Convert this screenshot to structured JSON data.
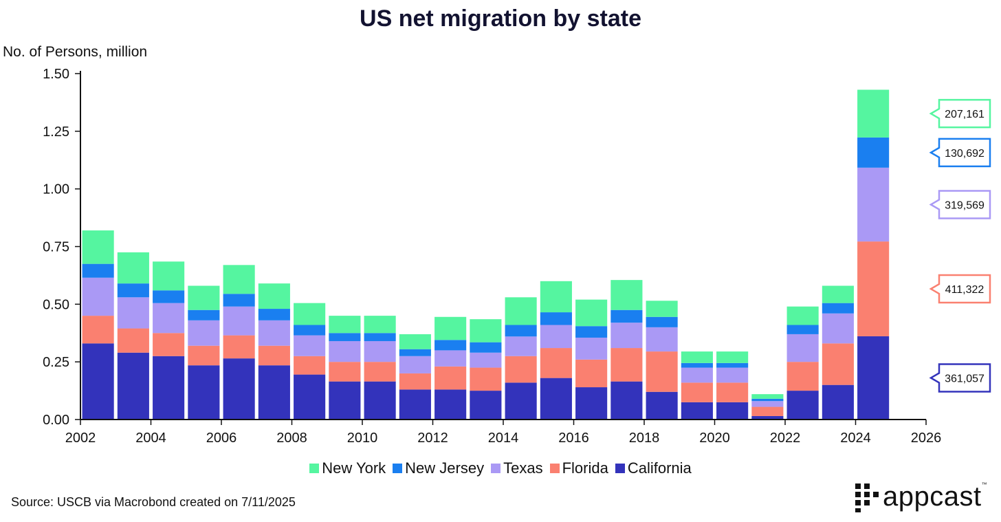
{
  "chart_data": {
    "type": "bar",
    "stacked": true,
    "title": "US net migration by state",
    "ylabel": "No. of Persons, million",
    "xlabel": "",
    "ylim": [
      0,
      1.5
    ],
    "xlim": [
      2002,
      2026
    ],
    "yticks": [
      "0.00",
      "0.25",
      "0.50",
      "0.75",
      "1.00",
      "1.25",
      "1.50"
    ],
    "xticks": [
      "2002",
      "2004",
      "2006",
      "2008",
      "2010",
      "2012",
      "2014",
      "2016",
      "2018",
      "2020",
      "2022",
      "2024",
      "2026"
    ],
    "x": [
      2002,
      2003,
      2004,
      2005,
      2006,
      2007,
      2008,
      2009,
      2010,
      2011,
      2012,
      2013,
      2014,
      2015,
      2016,
      2017,
      2018,
      2019,
      2020,
      2021,
      2022,
      2023,
      2024
    ],
    "series": [
      {
        "name": "California",
        "color": "#3333bb",
        "values": [
          0.33,
          0.29,
          0.275,
          0.235,
          0.265,
          0.235,
          0.195,
          0.165,
          0.165,
          0.13,
          0.13,
          0.125,
          0.16,
          0.18,
          0.14,
          0.165,
          0.12,
          0.075,
          0.075,
          0.015,
          0.125,
          0.15,
          0.361
        ]
      },
      {
        "name": "Florida",
        "color": "#fa8070",
        "values": [
          0.12,
          0.105,
          0.1,
          0.085,
          0.1,
          0.085,
          0.08,
          0.085,
          0.085,
          0.07,
          0.1,
          0.1,
          0.115,
          0.13,
          0.12,
          0.145,
          0.175,
          0.085,
          0.085,
          0.04,
          0.125,
          0.18,
          0.411
        ]
      },
      {
        "name": "Texas",
        "color": "#aa99f5",
        "values": [
          0.165,
          0.135,
          0.13,
          0.11,
          0.125,
          0.11,
          0.09,
          0.09,
          0.09,
          0.075,
          0.07,
          0.065,
          0.085,
          0.1,
          0.095,
          0.11,
          0.105,
          0.065,
          0.065,
          0.025,
          0.12,
          0.13,
          0.32
        ]
      },
      {
        "name": "New Jersey",
        "color": "#1a7ff0",
        "values": [
          0.06,
          0.06,
          0.055,
          0.045,
          0.055,
          0.05,
          0.045,
          0.035,
          0.035,
          0.03,
          0.045,
          0.045,
          0.05,
          0.055,
          0.05,
          0.055,
          0.045,
          0.02,
          0.02,
          0.01,
          0.04,
          0.045,
          0.131
        ]
      },
      {
        "name": "New York",
        "color": "#55f5a0",
        "values": [
          0.145,
          0.135,
          0.125,
          0.105,
          0.125,
          0.11,
          0.095,
          0.075,
          0.075,
          0.065,
          0.1,
          0.1,
          0.12,
          0.135,
          0.115,
          0.13,
          0.07,
          0.05,
          0.05,
          0.02,
          0.08,
          0.075,
          0.207
        ]
      }
    ],
    "end_labels": [
      {
        "series": "New York",
        "text": "207,161"
      },
      {
        "series": "New Jersey",
        "text": "130,692"
      },
      {
        "series": "Texas",
        "text": "319,569"
      },
      {
        "series": "Florida",
        "text": "411,322"
      },
      {
        "series": "California",
        "text": "361,057"
      }
    ],
    "legend": [
      "New York",
      "New Jersey",
      "Texas",
      "Florida",
      "California"
    ],
    "legend_position": "bottom"
  },
  "source": "Source: USCB via Macrobond created on 7/11/2025",
  "logo": {
    "text": "appcast",
    "mark": "™"
  }
}
